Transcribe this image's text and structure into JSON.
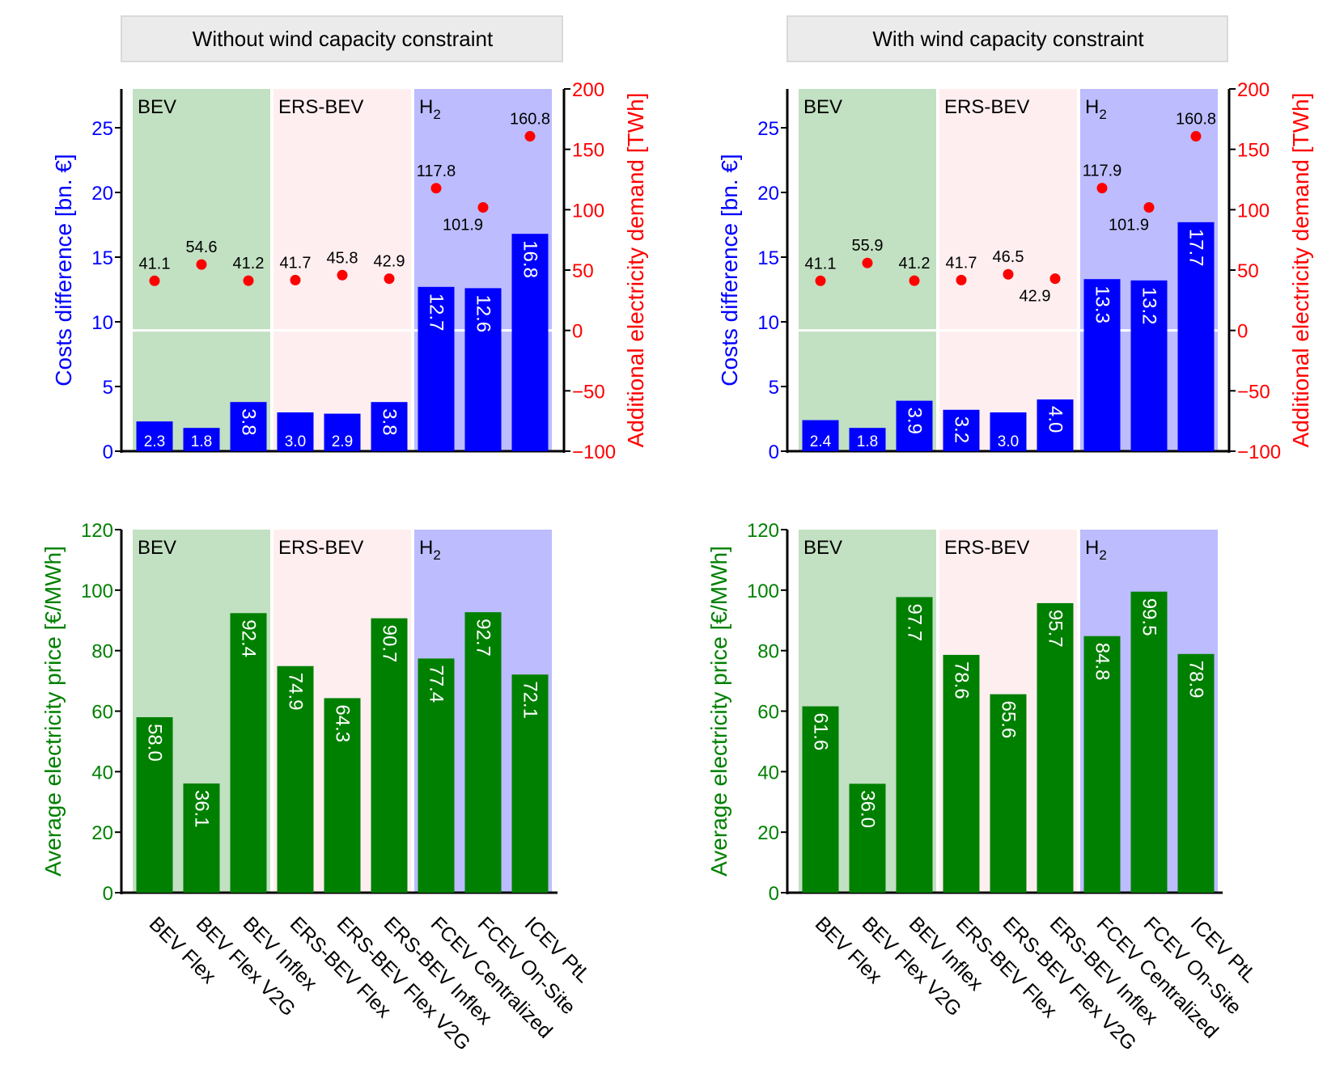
{
  "colors": {
    "costs": "#0000ff",
    "demand": "#ff0000",
    "price": "#008000",
    "bev_band": "#c2e0c2",
    "ers_band": "#ffeef0",
    "h2_band": "#bcbcff",
    "facet_bg": "#ebebeb"
  },
  "categories": [
    "BEV Flex",
    "BEV Flex V2G",
    "BEV Inflex",
    "ERS-BEV Flex",
    "ERS-BEV Flex V2G",
    "ERS-BEV Inflex",
    "FCEV Centralized",
    "FCEV On-Site",
    "ICEV PtL"
  ],
  "groups": [
    {
      "label": "BEV",
      "sub": "",
      "from": 0,
      "to": 2
    },
    {
      "label": "ERS-BEV",
      "sub": "",
      "from": 3,
      "to": 5
    },
    {
      "label": "H",
      "sub": "2",
      "from": 6,
      "to": 8
    }
  ],
  "chart_data": [
    {
      "type": "bar",
      "panel": "top-left",
      "facet": "Without wind capacity constraint",
      "ylabel": "Costs difference [bn. €]",
      "y2label": "Additional electricity demand [TWh]",
      "ylim": [
        0,
        28
      ],
      "yticks": [
        0,
        5,
        10,
        15,
        20,
        25
      ],
      "y2lim": [
        -100,
        200
      ],
      "y2ticks": [
        -100,
        -50,
        0,
        50,
        100,
        150,
        200
      ],
      "series": [
        {
          "name": "Costs difference",
          "values": [
            2.3,
            1.8,
            3.8,
            3.0,
            2.9,
            3.8,
            12.7,
            12.6,
            16.8
          ]
        },
        {
          "name": "Additional electricity demand",
          "type": "scatter",
          "values": [
            41.1,
            54.6,
            41.2,
            41.7,
            45.8,
            42.9,
            117.8,
            101.9,
            160.8
          ]
        }
      ]
    },
    {
      "type": "bar",
      "panel": "top-right",
      "facet": "With wind capacity constraint",
      "ylabel": "Costs difference [bn. €]",
      "y2label": "Additional electricity demand [TWh]",
      "ylim": [
        0,
        28
      ],
      "yticks": [
        0,
        5,
        10,
        15,
        20,
        25
      ],
      "y2lim": [
        -100,
        200
      ],
      "y2ticks": [
        -100,
        -50,
        0,
        50,
        100,
        150,
        200
      ],
      "series": [
        {
          "name": "Costs difference",
          "values": [
            2.4,
            1.8,
            3.9,
            3.2,
            3.0,
            4.0,
            13.3,
            13.2,
            17.7
          ]
        },
        {
          "name": "Additional electricity demand",
          "type": "scatter",
          "values": [
            41.1,
            55.9,
            41.2,
            41.7,
            46.5,
            42.9,
            117.9,
            101.9,
            160.8
          ]
        }
      ]
    },
    {
      "type": "bar",
      "panel": "bottom-left",
      "ylabel": "Average electricity price [€/MWh]",
      "ylim": [
        0,
        120
      ],
      "yticks": [
        0,
        20,
        40,
        60,
        80,
        100,
        120
      ],
      "series": [
        {
          "name": "Average electricity price",
          "values": [
            58.0,
            36.1,
            92.4,
            74.9,
            64.3,
            90.7,
            77.4,
            92.7,
            72.1
          ]
        }
      ]
    },
    {
      "type": "bar",
      "panel": "bottom-right",
      "ylabel": "Average electricity price [€/MWh]",
      "ylim": [
        0,
        120
      ],
      "yticks": [
        0,
        20,
        40,
        60,
        80,
        100,
        120
      ],
      "series": [
        {
          "name": "Average electricity price",
          "values": [
            61.6,
            36.0,
            97.7,
            78.6,
            65.6,
            95.7,
            84.8,
            99.5,
            78.9
          ]
        }
      ]
    }
  ]
}
